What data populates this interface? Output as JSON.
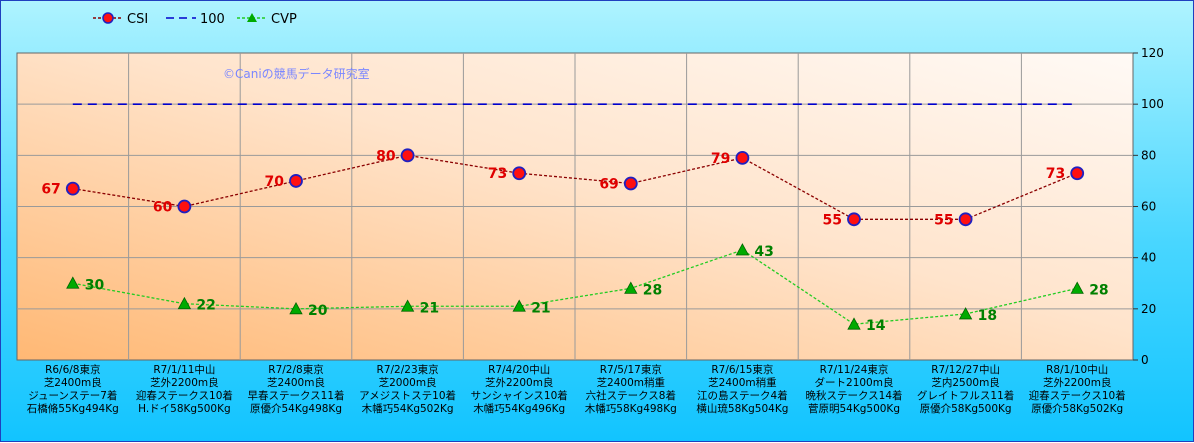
{
  "chart_data": {
    "type": "line",
    "watermark": "©Caniの競馬データ研究室",
    "ylim": [
      0,
      120
    ],
    "yticks": [
      0,
      20,
      40,
      60,
      80,
      100,
      120
    ],
    "categories": [
      [
        "R6/6/8東京",
        "芝2400m良",
        "ジューンステー7着",
        "石橋脩55Kg494Kg"
      ],
      [
        "R7/1/11中山",
        "芝外2200m良",
        "迎春ステークス10着",
        "H.ドイ58Kg500Kg"
      ],
      [
        "R7/2/8東京",
        "芝2400m良",
        "早春ステークス11着",
        "原優介54Kg498Kg"
      ],
      [
        "R7/2/23東京",
        "芝2000m良",
        "アメジストステ10着",
        "木幡巧54Kg502Kg"
      ],
      [
        "R7/4/20中山",
        "芝外2200m良",
        "サンシャインス10着",
        "木幡巧54Kg496Kg"
      ],
      [
        "R7/5/17東京",
        "芝2400m稍重",
        "六社ステークス8着",
        "木幡巧58Kg498Kg"
      ],
      [
        "R7/6/15東京",
        "芝2400m稍重",
        "江の島ステーク4着",
        "横山琉58Kg504Kg"
      ],
      [
        "R7/11/24東京",
        "ダート2100m良",
        "晩秋ステークス14着",
        "菅原明54Kg500Kg"
      ],
      [
        "R7/12/27中山",
        "芝内2500m良",
        "グレイトフルス11着",
        "原優介58Kg500Kg"
      ],
      [
        "R8/1/10中山",
        "芝外2200m良",
        "迎春ステークス10着",
        "原優介58Kg502Kg"
      ]
    ],
    "series": [
      {
        "name": "CSI",
        "values": [
          67,
          60,
          70,
          80,
          73,
          69,
          79,
          55,
          55,
          73
        ],
        "color": "#8b0000",
        "marker": "circle",
        "marker_fill": "#ff1010",
        "marker_edge": "#2020c0",
        "label_color": "#e00000"
      },
      {
        "name": "100",
        "values": [
          100,
          100,
          100,
          100,
          100,
          100,
          100,
          100,
          100,
          100
        ],
        "color": "#0000cc",
        "style": "dashed"
      },
      {
        "name": "CVP",
        "values": [
          30,
          22,
          20,
          21,
          21,
          28,
          43,
          14,
          18,
          28
        ],
        "color": "#22cc22",
        "marker": "triangle",
        "marker_fill": "#00aa00",
        "label_color": "#008000"
      }
    ],
    "grid": true,
    "legend": "top-left"
  }
}
